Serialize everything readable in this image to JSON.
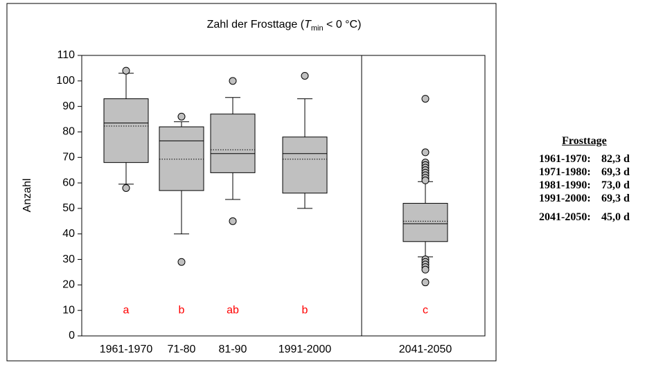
{
  "chart_data": {
    "type": "box",
    "title": [
      "Zahl der Frosttage (",
      "T",
      "min",
      " < 0 °C)"
    ],
    "y_label": "Anzahl",
    "categories": [
      "1961-1970",
      "71-80",
      "81-90",
      "1991-2000",
      "2041-2050"
    ],
    "boxes": [
      {
        "whisker_low": 59.5,
        "q1": 68,
        "median": 83.5,
        "q3": 93,
        "whisker_high": 103,
        "mean": 82.3,
        "outliers": [
          104,
          58
        ]
      },
      {
        "whisker_low": 40,
        "q1": 57,
        "median": 76.5,
        "q3": 82,
        "whisker_high": 84,
        "mean": 69.3,
        "outliers": [
          86,
          29
        ]
      },
      {
        "whisker_low": 53.5,
        "q1": 64,
        "median": 71.5,
        "q3": 87,
        "whisker_high": 93.5,
        "mean": 73,
        "outliers": [
          100,
          45
        ]
      },
      {
        "whisker_low": 50,
        "q1": 56,
        "median": 71.5,
        "q3": 78,
        "whisker_high": 93,
        "mean": 69.3,
        "outliers": [
          102
        ]
      },
      {
        "whisker_low": 31,
        "q1": 37,
        "median": 44,
        "q3": 52,
        "whisker_high": 60.5,
        "mean": 45,
        "outliers": [
          93,
          72,
          68,
          67,
          66,
          65,
          64,
          63,
          62,
          61,
          30,
          29,
          28,
          27,
          26,
          21
        ]
      }
    ],
    "letters": [
      "a",
      "b",
      "ab",
      "b",
      "c"
    ],
    "letter_y": 10,
    "letter_color": "#ff0000",
    "box_color": "#c0c0c0",
    "ylim": [
      0,
      110
    ],
    "yticks": [
      0,
      10,
      20,
      30,
      40,
      50,
      60,
      70,
      80,
      90,
      100,
      110
    ]
  },
  "summary": {
    "title": "Frosttage",
    "rows": [
      [
        "1961-1970:",
        "82,3 d"
      ],
      [
        "1971-1980:",
        "69,3 d"
      ],
      [
        "1981-1990:",
        "73,0 d"
      ],
      [
        "1991-2000:",
        "69,3 d"
      ],
      [
        "2041-2050:",
        "45,0 d"
      ]
    ]
  }
}
